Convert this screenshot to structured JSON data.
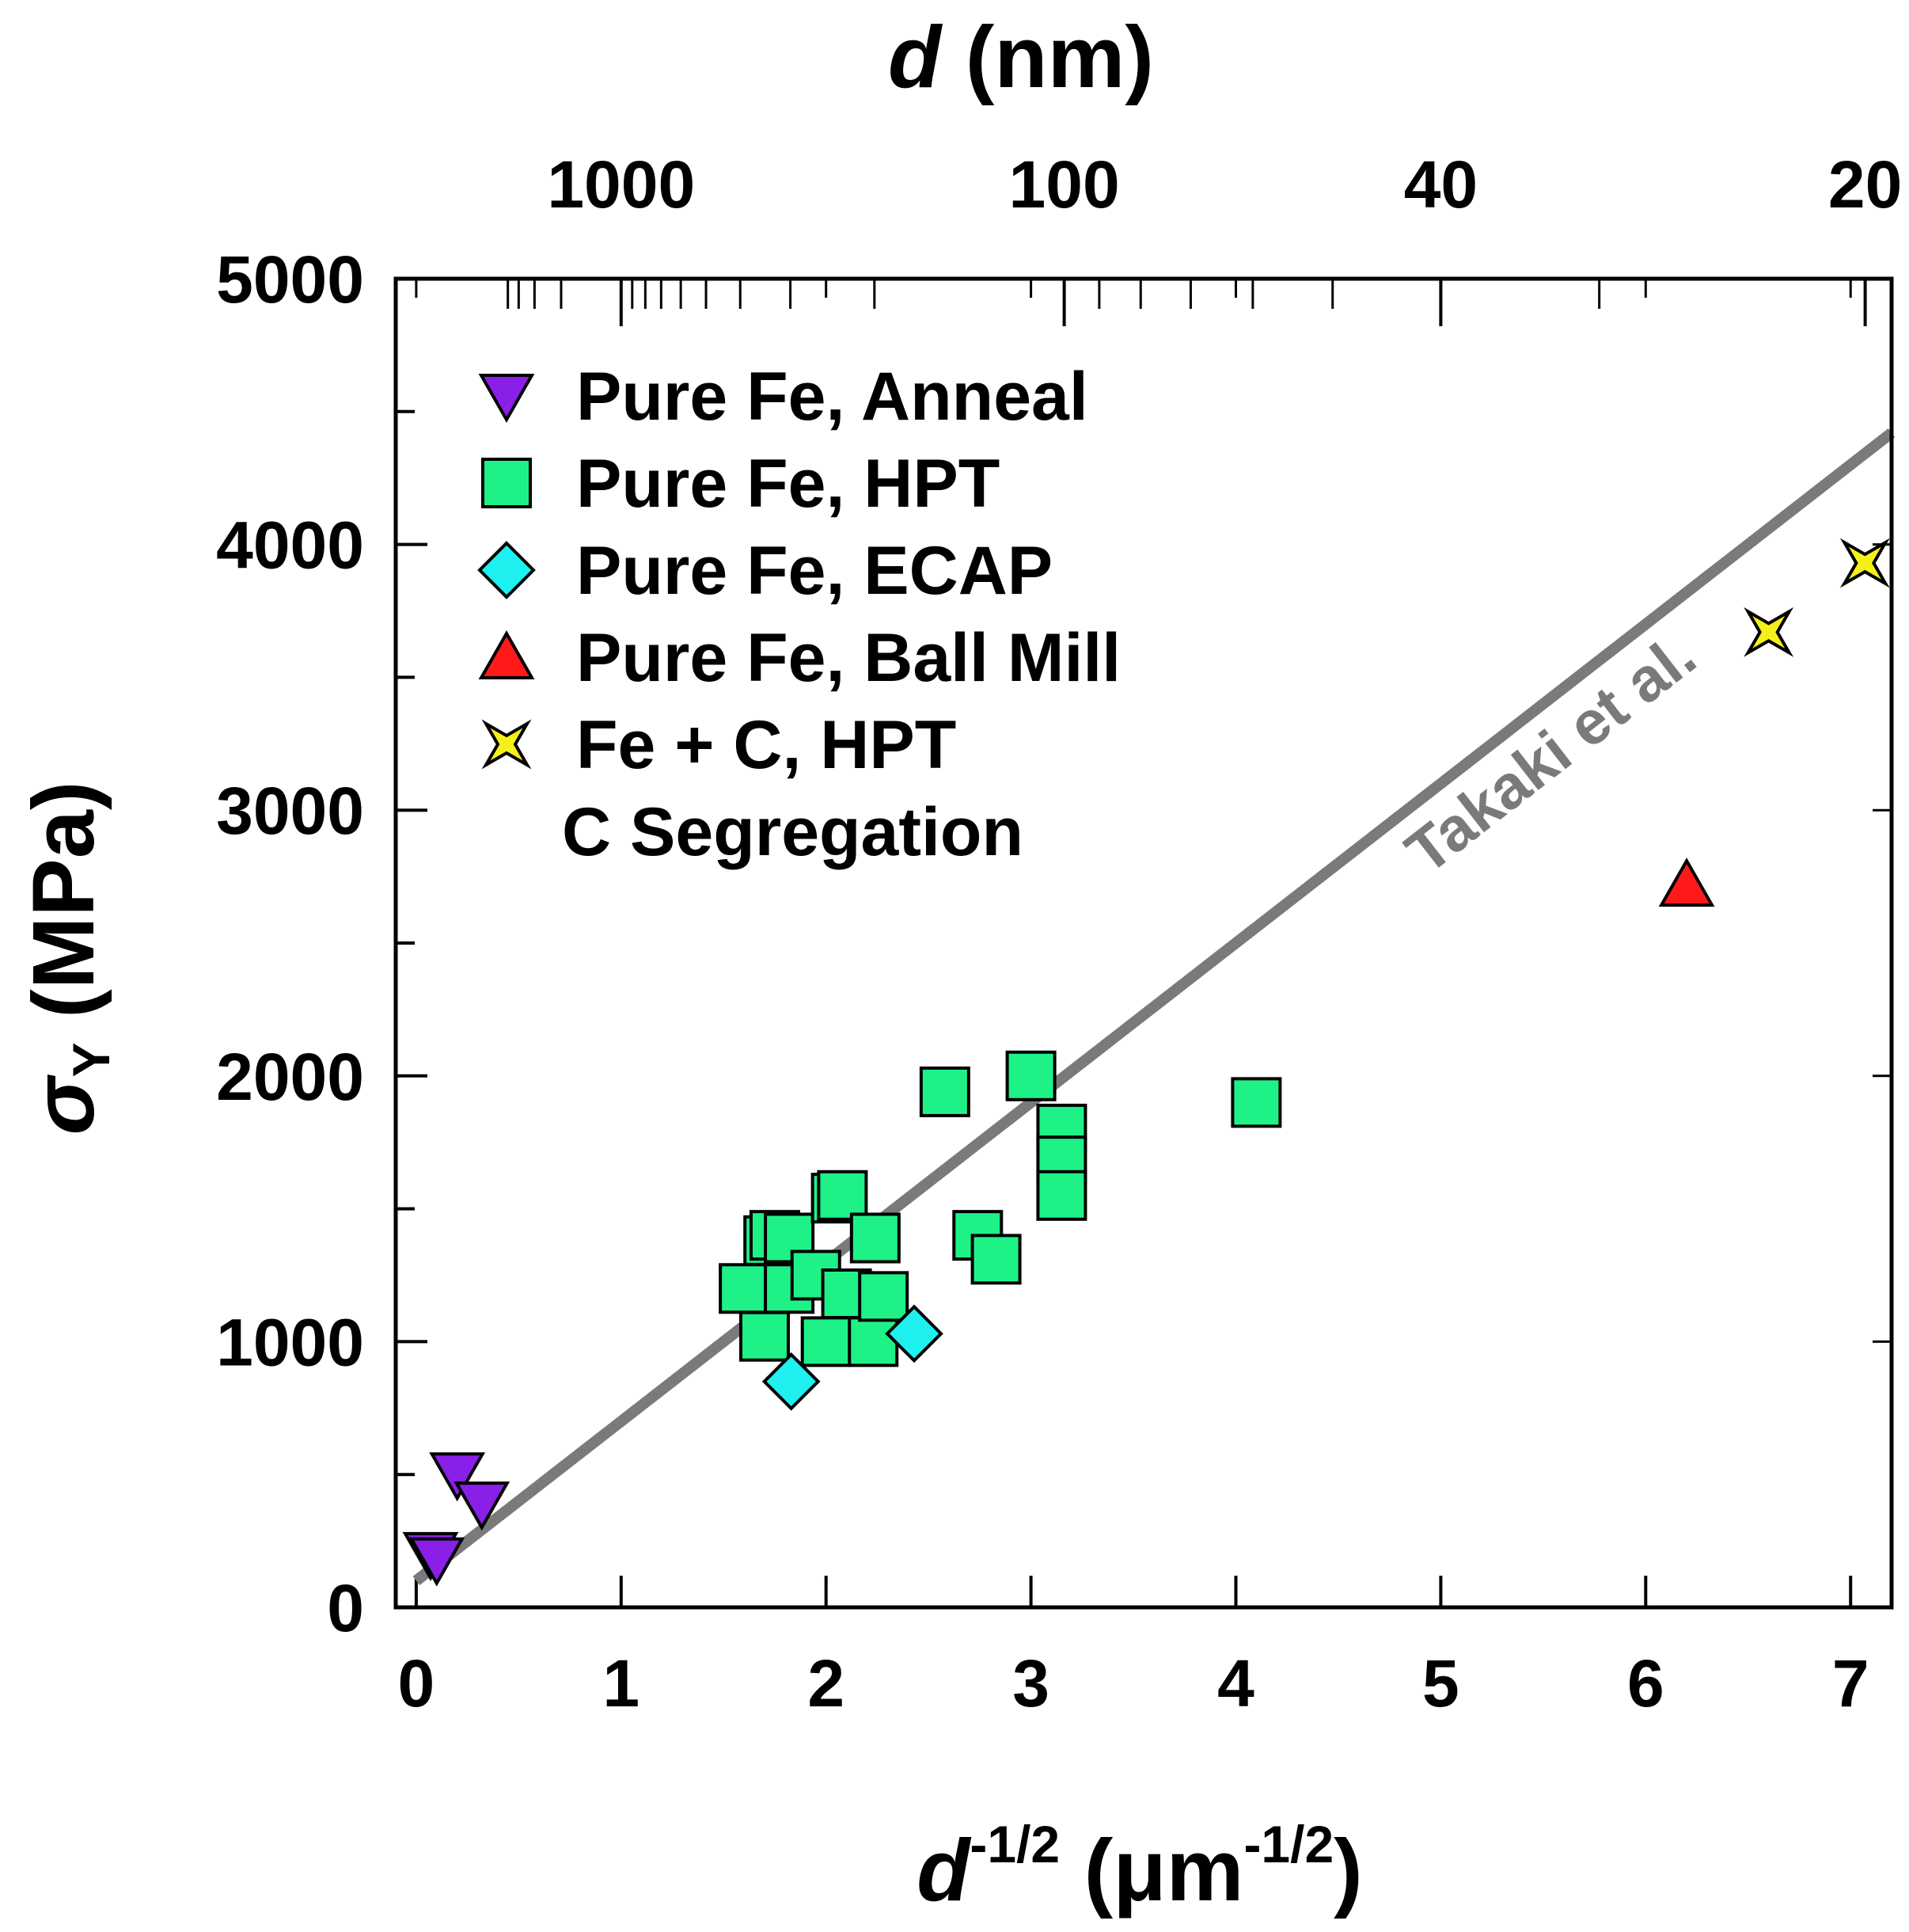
{
  "chart_data": {
    "type": "scatter",
    "x_axis": {
      "label_main": "d",
      "label_sup": "-1/2",
      "label_unit_open": " (μm",
      "label_unit_sup": "-1/2",
      "label_unit_close": ")",
      "range": [
        -0.1,
        7.2
      ],
      "ticks": [
        0,
        1,
        2,
        3,
        4,
        5,
        6,
        7
      ],
      "tick_labels": [
        "0",
        "1",
        "2",
        "3",
        "4",
        "5",
        "6",
        "7"
      ]
    },
    "y_axis": {
      "label_sigma": "σ",
      "label_sub": "Y",
      "label_rest": " (MPa)",
      "range": [
        0,
        5000
      ],
      "ticks": [
        0,
        1000,
        2000,
        3000,
        4000,
        5000
      ],
      "tick_labels": [
        "0",
        "1000",
        "2000",
        "3000",
        "4000",
        "5000"
      ],
      "minor_ticks": [
        500,
        1500,
        2500,
        3500,
        4500
      ]
    },
    "top_axis": {
      "label_main": "d",
      "label_unit": " (nm)",
      "scale": "reciprocal_sqrt",
      "labeled_ticks_nm": [
        1000,
        100,
        40,
        20
      ],
      "tick_labels": [
        "1000",
        "100",
        "40",
        "20"
      ],
      "minor_ticks_nm": [
        5000,
        4000,
        3000,
        2000,
        900,
        800,
        700,
        600,
        500,
        400,
        300,
        200,
        90,
        80,
        70,
        60,
        50,
        30
      ]
    },
    "series": [
      {
        "name": "Pure Fe, Anneal",
        "marker": "triangle-down",
        "color": "#8a1fe8",
        "points": [
          [
            0.2,
            500
          ],
          [
            0.32,
            390
          ],
          [
            0.07,
            200
          ],
          [
            0.1,
            180
          ]
        ]
      },
      {
        "name": "Pure Fe, HPT",
        "marker": "square",
        "color": "#1ef287",
        "points": [
          [
            1.6,
            1200
          ],
          [
            1.7,
            1020
          ],
          [
            1.72,
            1380
          ],
          [
            1.75,
            1400
          ],
          [
            1.82,
            1390
          ],
          [
            1.82,
            1200
          ],
          [
            1.95,
            1250
          ],
          [
            2.0,
            1000
          ],
          [
            2.05,
            1540
          ],
          [
            2.08,
            1550
          ],
          [
            2.1,
            1180
          ],
          [
            2.23,
            1000
          ],
          [
            2.24,
            1390
          ],
          [
            2.28,
            1170
          ],
          [
            2.58,
            1940
          ],
          [
            2.74,
            1400
          ],
          [
            2.83,
            1310
          ],
          [
            3.0,
            2000
          ],
          [
            3.15,
            1800
          ],
          [
            3.15,
            1680
          ],
          [
            3.15,
            1550
          ],
          [
            4.1,
            1900
          ]
        ]
      },
      {
        "name": "Pure Fe, ECAP",
        "marker": "diamond",
        "color": "#1ef0f0",
        "points": [
          [
            1.83,
            850
          ],
          [
            2.43,
            1030
          ]
        ]
      },
      {
        "name": "Pure Fe, Ball Mill",
        "marker": "triangle-up",
        "color": "#ff1a1a",
        "points": [
          [
            6.2,
            2720
          ]
        ]
      },
      {
        "name": "Fe + C, HPT",
        "name_line2": "C Segregation",
        "marker": "star4",
        "color": "#f5f01a",
        "points": [
          [
            6.6,
            3670
          ],
          [
            7.07,
            3930
          ]
        ]
      }
    ],
    "fit_line": {
      "name": "Takaki et al.",
      "color": "#7a7a7a",
      "points": [
        [
          0,
          100
        ],
        [
          7.2,
          4420
        ]
      ]
    },
    "legend_position": "top-left",
    "grid": false
  }
}
